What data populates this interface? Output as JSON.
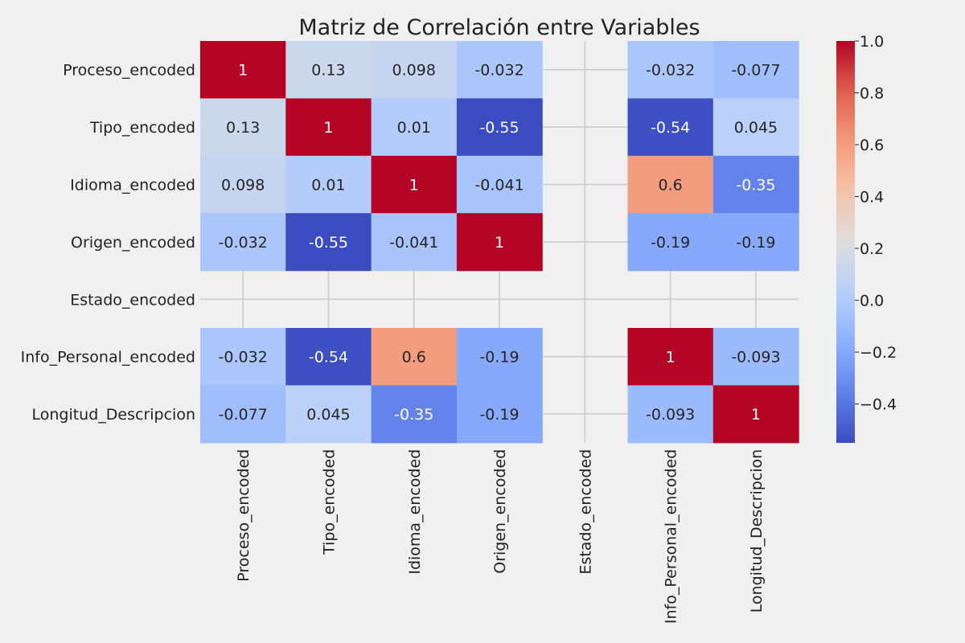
{
  "chart_data": {
    "type": "heatmap",
    "title": "Matriz de Correlación entre Variables",
    "rows": [
      "Proceso_encoded",
      "Tipo_encoded",
      "Idioma_encoded",
      "Origen_encoded",
      "Estado_encoded",
      "Info_Personal_encoded",
      "Longitud_Descripcion"
    ],
    "cols": [
      "Proceso_encoded",
      "Tipo_encoded",
      "Idioma_encoded",
      "Origen_encoded",
      "Estado_encoded",
      "Info_Personal_encoded",
      "Longitud_Descripcion"
    ],
    "values": [
      [
        1,
        0.13,
        0.098,
        -0.032,
        null,
        -0.032,
        -0.077
      ],
      [
        0.13,
        1,
        0.01,
        -0.55,
        null,
        -0.54,
        0.045
      ],
      [
        0.098,
        0.01,
        1,
        -0.041,
        null,
        0.6,
        -0.35
      ],
      [
        -0.032,
        -0.55,
        -0.041,
        1,
        null,
        -0.19,
        -0.19
      ],
      [
        null,
        null,
        null,
        null,
        null,
        null,
        null
      ],
      [
        -0.032,
        -0.54,
        0.6,
        -0.19,
        null,
        1,
        -0.093
      ],
      [
        -0.077,
        0.045,
        -0.35,
        -0.19,
        null,
        -0.093,
        1
      ]
    ],
    "annotations": [
      [
        "1",
        "0.13",
        "0.098",
        "-0.032",
        "",
        "-0.032",
        "-0.077"
      ],
      [
        "0.13",
        "1",
        "0.01",
        "-0.55",
        "",
        "-0.54",
        "0.045"
      ],
      [
        "0.098",
        "0.01",
        "1",
        "-0.041",
        "",
        "0.6",
        "-0.35"
      ],
      [
        "-0.032",
        "-0.55",
        "-0.041",
        "1",
        "",
        "-0.19",
        "-0.19"
      ],
      [
        "",
        "",
        "",
        "",
        "",
        "",
        ""
      ],
      [
        "-0.032",
        "-0.54",
        "0.6",
        "-0.19",
        "",
        "1",
        "-0.093"
      ],
      [
        "-0.077",
        "0.045",
        "-0.35",
        "-0.19",
        "",
        "-0.093",
        "1"
      ]
    ],
    "colormap": "coolwarm",
    "vmin": -0.55,
    "vmax": 1.0,
    "colorbar": {
      "ticks": [
        1.0,
        0.8,
        0.6,
        0.4,
        0.2,
        0.0,
        -0.2,
        -0.4
      ],
      "tick_labels": [
        "1.0",
        "0.8",
        "0.6",
        "0.4",
        "0.2",
        "0.0",
        "−0.2",
        "−0.4"
      ]
    },
    "grid": true,
    "background_color": "#f0f0f0",
    "grid_color": "#cbcbcb"
  }
}
